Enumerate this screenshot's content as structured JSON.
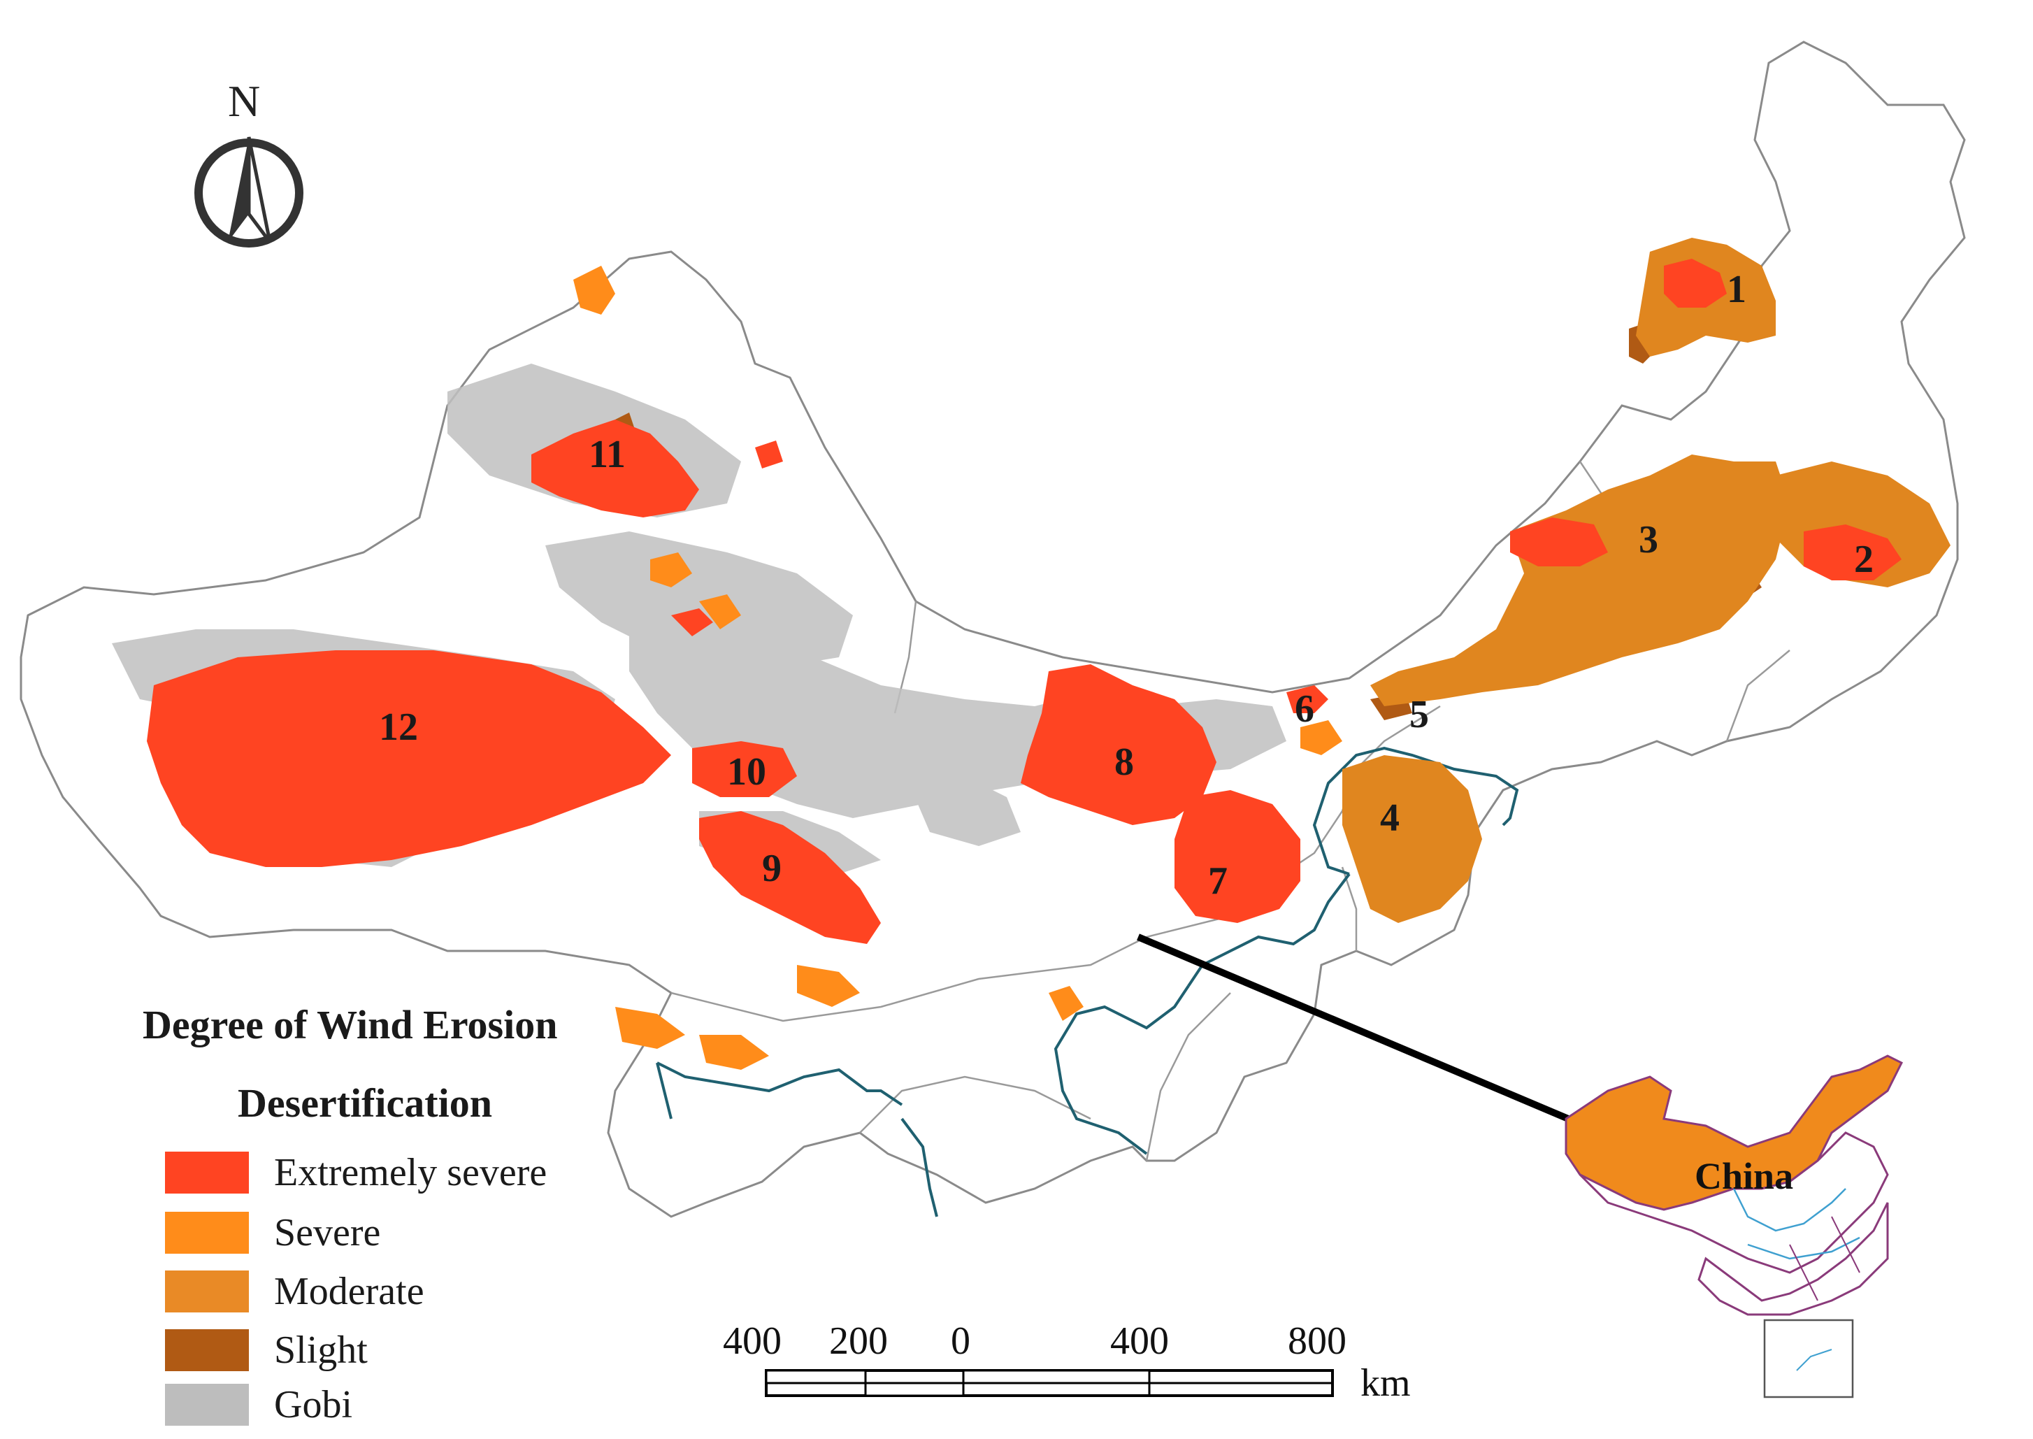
{
  "map": {
    "compass": {
      "north_label": "N"
    },
    "regions": [
      {
        "id": "1",
        "label": "1"
      },
      {
        "id": "2",
        "label": "2"
      },
      {
        "id": "3",
        "label": "3"
      },
      {
        "id": "4",
        "label": "4"
      },
      {
        "id": "5",
        "label": "5"
      },
      {
        "id": "6",
        "label": "6"
      },
      {
        "id": "7",
        "label": "7"
      },
      {
        "id": "8",
        "label": "8"
      },
      {
        "id": "9",
        "label": "9"
      },
      {
        "id": "10",
        "label": "10"
      },
      {
        "id": "11",
        "label": "11"
      },
      {
        "id": "12",
        "label": "12"
      }
    ],
    "legend": {
      "title_line1": "Degree of Wind Erosion",
      "title_line2": "Desertification",
      "items": [
        {
          "label": "Extremely severe",
          "color": "#ff4422"
        },
        {
          "label": "Severe",
          "color": "#ff8c1a"
        },
        {
          "label": "Moderate",
          "color": "#e98a26"
        },
        {
          "label": "Slight",
          "color": "#b05a14"
        },
        {
          "label": "Gobi",
          "color": "#bdbdbd"
        }
      ]
    },
    "scale_bar": {
      "ticks": [
        "400",
        "200",
        "0",
        "400",
        "800"
      ],
      "unit": "km"
    },
    "inset": {
      "label": "China",
      "fill_color": "#f08a1c"
    }
  }
}
